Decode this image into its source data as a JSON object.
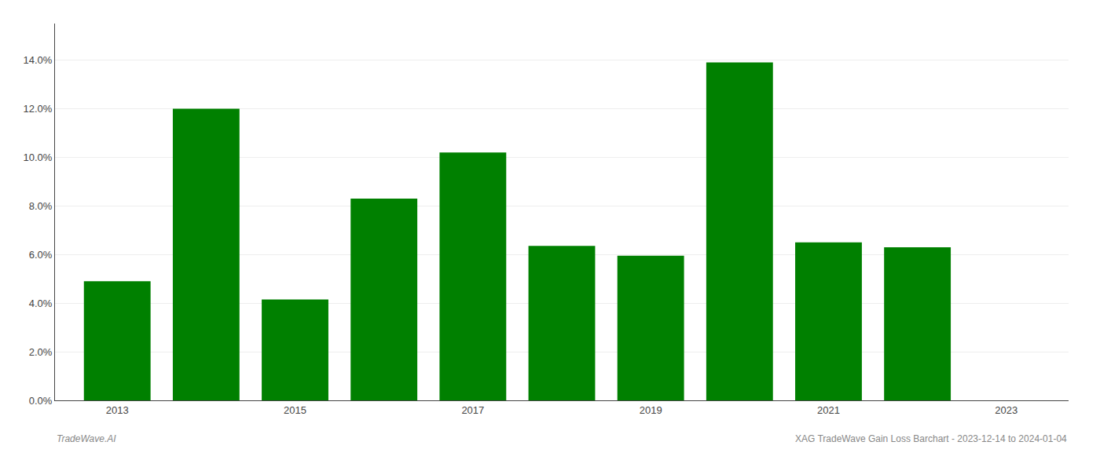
{
  "chart_data": {
    "type": "bar",
    "x": [
      2013,
      2014,
      2015,
      2016,
      2017,
      2018,
      2019,
      2020,
      2021,
      2022
    ],
    "values": [
      0.049,
      0.12,
      0.0415,
      0.083,
      0.102,
      0.0635,
      0.0595,
      0.139,
      0.065,
      0.063
    ],
    "color": "#008000",
    "xlim": [
      2012.3,
      2023.7
    ],
    "xticks": [
      2013,
      2015,
      2017,
      2019,
      2021,
      2023
    ],
    "ylim": [
      0,
      0.155
    ],
    "yticks": [
      {
        "value": 0.0,
        "label": "0.0%"
      },
      {
        "value": 0.02,
        "label": "2.0%"
      },
      {
        "value": 0.04,
        "label": "4.0%"
      },
      {
        "value": 0.06,
        "label": "6.0%"
      },
      {
        "value": 0.08,
        "label": "8.0%"
      },
      {
        "value": 0.1,
        "label": "10.0%"
      },
      {
        "value": 0.12,
        "label": "12.0%"
      },
      {
        "value": 0.14,
        "label": "14.0%"
      }
    ],
    "grid": true,
    "annotations": [
      "TradeWave.AI",
      "XAG TradeWave Gain Loss Barchart - 2023-12-14 to 2024-01-04"
    ]
  }
}
